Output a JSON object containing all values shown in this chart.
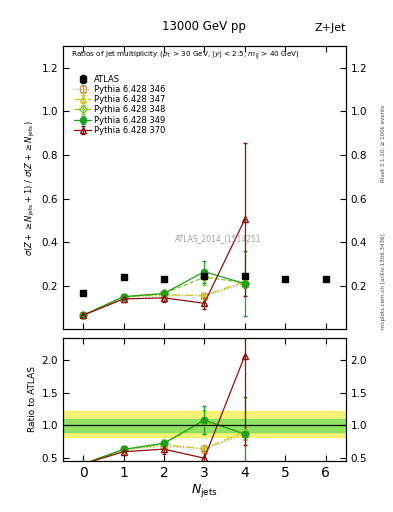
{
  "title_top": "13000 GeV pp",
  "title_right": "Z+Jet",
  "right_label1": "Rivet 3.1.10, ≥ 100k events",
  "right_label2": "mcplots.cern.ch [arXiv:1306.3436]",
  "subtitle": "Ratios of jet multiplicity (p$_T$ > 30 GeV, |y| < 2.5, m$_{||}$ > 40 GeV)",
  "watermark": "ATLAS_2014_I1514251",
  "ylabel_main": "σ(Z + ≥ N_{jets}+1) / σ(Z + ≥ N_{jets})",
  "ylabel_ratio": "Ratio to ATLAS",
  "xlabel": "N_{jets}",
  "xlim": [
    -0.5,
    6.5
  ],
  "ylim_main": [
    0,
    1.3
  ],
  "ylim_ratio": [
    0.45,
    2.35
  ],
  "yticks_main": [
    0.2,
    0.4,
    0.6,
    0.8,
    1.0,
    1.2
  ],
  "yticks_ratio": [
    0.5,
    1.0,
    1.5,
    2.0
  ],
  "xticks": [
    0,
    1,
    2,
    3,
    4,
    5,
    6
  ],
  "atlas_x": [
    0,
    1,
    2,
    3,
    4,
    5,
    6
  ],
  "atlas_y": [
    0.165,
    0.24,
    0.23,
    0.245,
    0.245,
    0.23,
    0.23
  ],
  "atlas_yerr": [
    0.005,
    0.005,
    0.005,
    0.005,
    0.005,
    0.005,
    0.005
  ],
  "series": [
    {
      "label": "Pythia 6.428 346",
      "x": [
        0,
        1,
        2,
        3,
        4
      ],
      "y": [
        0.065,
        0.15,
        0.155,
        0.155,
        0.21
      ],
      "yerr": [
        0.003,
        0.008,
        0.008,
        0.012,
        0.018
      ],
      "color": "#c8a060",
      "marker": "s",
      "linestyle": ":",
      "fillstyle": "none"
    },
    {
      "label": "Pythia 6.428 347",
      "x": [
        0,
        1,
        2,
        3,
        4
      ],
      "y": [
        0.065,
        0.15,
        0.16,
        0.155,
        0.22
      ],
      "yerr": [
        0.003,
        0.008,
        0.008,
        0.012,
        0.018
      ],
      "color": "#c8c820",
      "marker": "^",
      "linestyle": "-.",
      "fillstyle": "none"
    },
    {
      "label": "Pythia 6.428 348",
      "x": [
        0,
        1,
        2,
        3,
        4
      ],
      "y": [
        0.065,
        0.15,
        0.165,
        0.24,
        0.215
      ],
      "yerr": [
        0.003,
        0.008,
        0.012,
        0.035,
        0.018
      ],
      "color": "#80c820",
      "marker": "D",
      "linestyle": "--",
      "fillstyle": "none"
    },
    {
      "label": "Pythia 6.428 349",
      "x": [
        0,
        1,
        2,
        3,
        4
      ],
      "y": [
        0.065,
        0.15,
        0.165,
        0.265,
        0.21
      ],
      "yerr": [
        0.003,
        0.008,
        0.012,
        0.05,
        0.15
      ],
      "color": "#20a020",
      "marker": "o",
      "linestyle": "-",
      "fillstyle": "full"
    },
    {
      "label": "Pythia 6.428 370",
      "x": [
        0,
        1,
        2,
        3,
        4
      ],
      "y": [
        0.065,
        0.14,
        0.145,
        0.12,
        0.505
      ],
      "yerr": [
        0.003,
        0.012,
        0.018,
        0.025,
        0.35
      ],
      "color": "#901010",
      "marker": "^",
      "linestyle": "-",
      "fillstyle": "none"
    }
  ],
  "ratio_series": [
    {
      "label": "Pythia 6.428 346",
      "x": [
        0,
        1,
        2,
        3,
        4
      ],
      "y": [
        0.4,
        0.625,
        0.675,
        0.635,
        0.86
      ],
      "yerr": [
        0.025,
        0.045,
        0.045,
        0.065,
        0.09
      ],
      "color": "#c8a060",
      "marker": "s",
      "linestyle": ":",
      "fillstyle": "none"
    },
    {
      "label": "Pythia 6.428 347",
      "x": [
        0,
        1,
        2,
        3,
        4
      ],
      "y": [
        0.4,
        0.625,
        0.7,
        0.635,
        0.9
      ],
      "yerr": [
        0.025,
        0.045,
        0.045,
        0.065,
        0.09
      ],
      "color": "#c8c820",
      "marker": "^",
      "linestyle": "-.",
      "fillstyle": "none"
    },
    {
      "label": "Pythia 6.428 348",
      "x": [
        0,
        1,
        2,
        3,
        4
      ],
      "y": [
        0.4,
        0.625,
        0.72,
        1.05,
        0.88
      ],
      "yerr": [
        0.025,
        0.045,
        0.055,
        0.18,
        0.09
      ],
      "color": "#80c820",
      "marker": "D",
      "linestyle": "--",
      "fillstyle": "none"
    },
    {
      "label": "Pythia 6.428 349",
      "x": [
        0,
        1,
        2,
        3,
        4
      ],
      "y": [
        0.4,
        0.625,
        0.72,
        1.08,
        0.86
      ],
      "yerr": [
        0.025,
        0.045,
        0.055,
        0.22,
        0.58
      ],
      "color": "#20a020",
      "marker": "o",
      "linestyle": "-",
      "fillstyle": "full"
    },
    {
      "label": "Pythia 6.428 370",
      "x": [
        0,
        1,
        2,
        3,
        4
      ],
      "y": [
        0.4,
        0.59,
        0.63,
        0.49,
        2.07
      ],
      "yerr": [
        0.025,
        0.055,
        0.075,
        0.11,
        1.38
      ],
      "color": "#901010",
      "marker": "^",
      "linestyle": "-",
      "fillstyle": "none"
    }
  ],
  "band_yellow": {
    "y_low": 0.82,
    "y_high": 1.22
  },
  "band_green": {
    "y_low": 0.9,
    "y_high": 1.1
  }
}
